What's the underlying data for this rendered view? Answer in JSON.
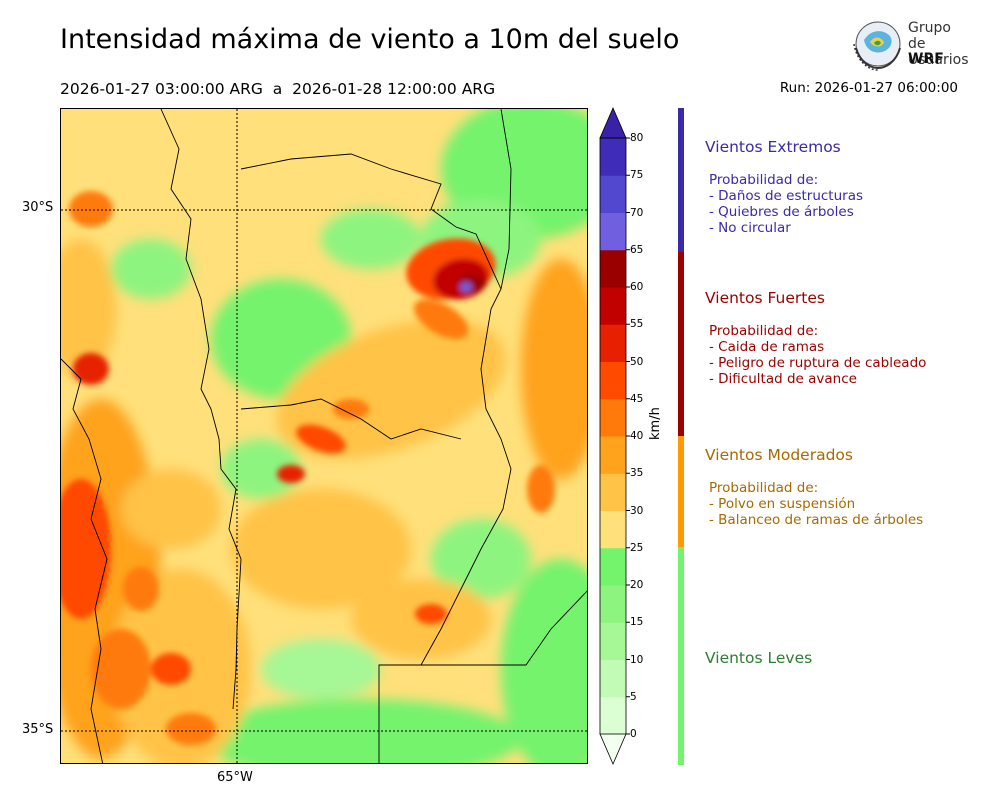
{
  "header": {
    "title": "Intensidad máxima de viento a 10m del suelo",
    "period_start": "2026-01-27 03:00:00 ARG",
    "period_sep": "a",
    "period_end": "2026-01-28 12:00:00 ARG",
    "run": "Run: 2026-01-27 06:00:00"
  },
  "logo": {
    "org_line1": "Grupo de",
    "org_line2": "Usuarios",
    "org_line3": "WRF"
  },
  "map": {
    "lat_labels": [
      "30°S",
      "35°S"
    ],
    "lon_labels": [
      "65°W"
    ]
  },
  "colorbar": {
    "unit": "km/h",
    "ticks": [
      "0",
      "5",
      "10",
      "15",
      "20",
      "25",
      "30",
      "35",
      "40",
      "45",
      "50",
      "55",
      "60",
      "65",
      "70",
      "75",
      "80"
    ],
    "colors": [
      "#f5fff0",
      "#dbffd3",
      "#c1fbb5",
      "#a6f795",
      "#8df47f",
      "#74f36d",
      "#ffe07a",
      "#ffc347",
      "#ffa21c",
      "#ff7a0a",
      "#ff4a00",
      "#e62000",
      "#c10000",
      "#9b0000",
      "#7060e0",
      "#5248d0",
      "#3f2cb8"
    ],
    "over_color": "#3a22a8"
  },
  "categories": [
    {
      "title": "Vientos Extremos",
      "color": "#3a2aa8",
      "lines": [
        "Probabilidad de:",
        "- Daños de estructuras",
        "- Quiebres de árboles",
        "- No circular"
      ]
    },
    {
      "title": "Vientos Fuertes",
      "color": "#9b0000",
      "lines": [
        "Probabilidad de:",
        "- Caida de ramas",
        "- Peligro de ruptura de cableado",
        "- Dificultad de avance"
      ]
    },
    {
      "title": "Vientos Moderados",
      "color": "#a86a00",
      "bar_color": "#ff9a00",
      "lines": [
        "Probabilidad de:",
        "- Polvo en suspensión",
        "- Balanceo de ramas de árboles"
      ]
    },
    {
      "title": "Vientos Leves",
      "color": "#2e7d32",
      "bar_color": "#74f36d",
      "lines": []
    }
  ]
}
